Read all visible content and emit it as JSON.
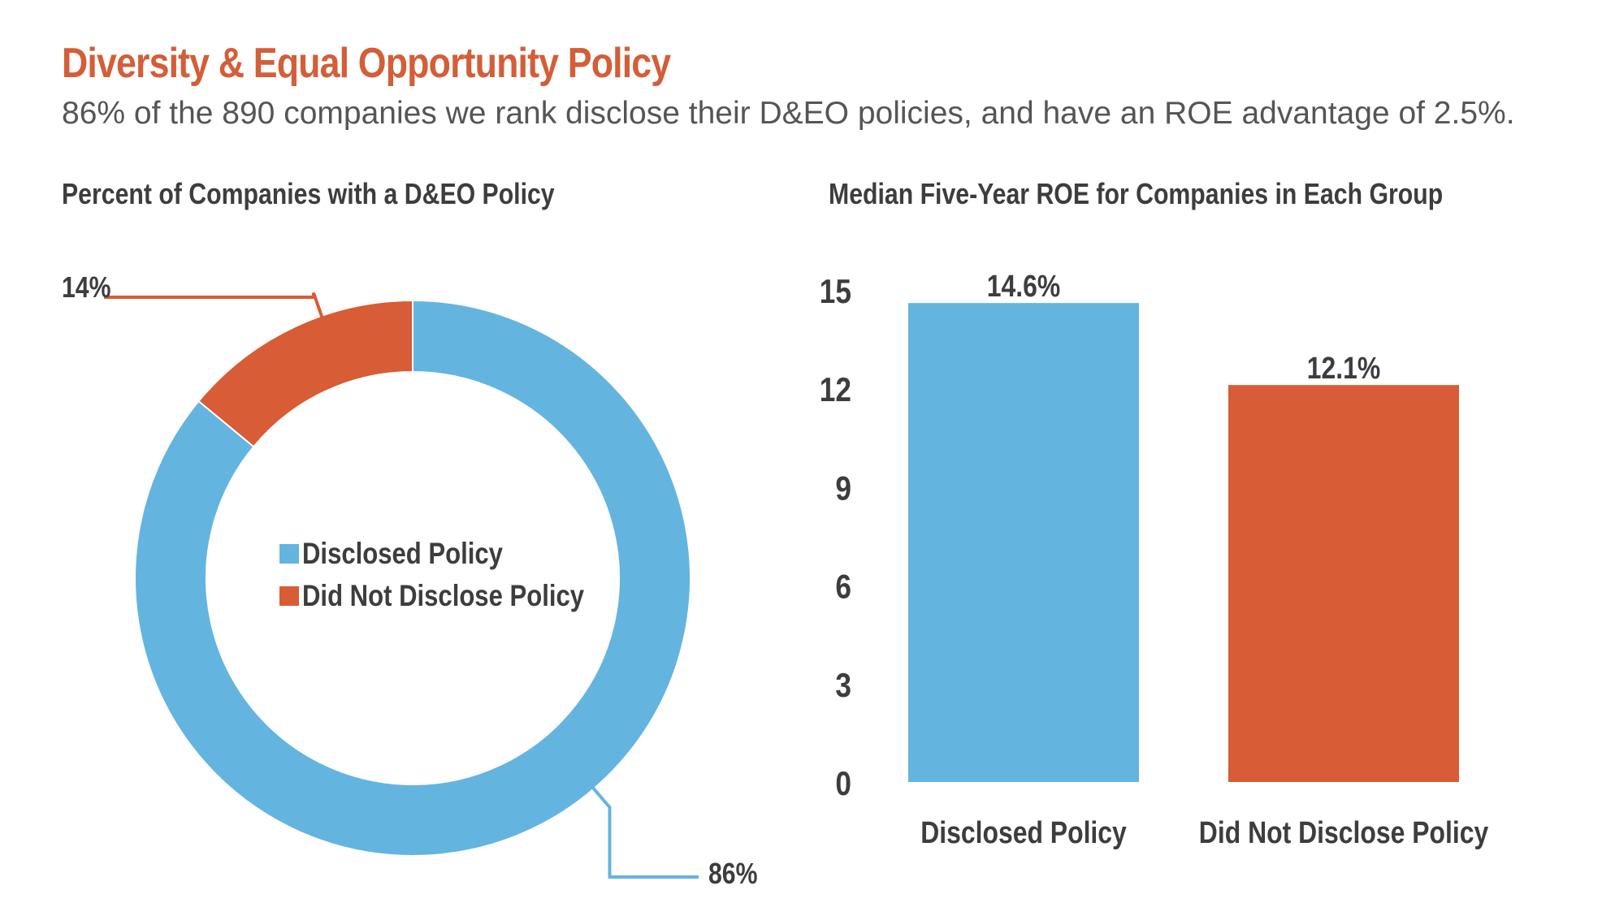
{
  "header": {
    "title": "Diversity & Equal Opportunity Policy",
    "subtitle": "86% of the 890 companies we rank disclose their D&EO policies, and have an ROE advantage of 2.5%."
  },
  "colors": {
    "accent": "#d35e38",
    "disclosed": "#64b4e0",
    "not_disclosed": "#d85c35",
    "text_dark": "#3d3d3d",
    "text_gray": "#555555"
  },
  "chart_data": [
    {
      "type": "pie",
      "title": "Percent of Companies with a D&EO Policy",
      "donut": true,
      "categories": [
        "Disclosed Policy",
        "Did Not Disclose Policy"
      ],
      "values": [
        86,
        14
      ],
      "value_labels": [
        "86%",
        "14%"
      ],
      "legend": {
        "position": "center",
        "items": [
          "Disclosed Policy",
          "Did Not Disclose Policy"
        ]
      }
    },
    {
      "type": "bar",
      "title": "Median Five-Year ROE for Companies in Each Group",
      "categories": [
        "Disclosed Policy",
        "Did Not Disclose Policy"
      ],
      "values": [
        14.6,
        12.1
      ],
      "value_labels": [
        "14.6%",
        "12.1%"
      ],
      "ylim": [
        0,
        15
      ],
      "yticks": [
        0,
        3,
        6,
        9,
        12,
        15
      ],
      "ytick_labels": [
        "0",
        "3",
        "6",
        "9",
        "12",
        "15"
      ],
      "grid": false
    }
  ]
}
